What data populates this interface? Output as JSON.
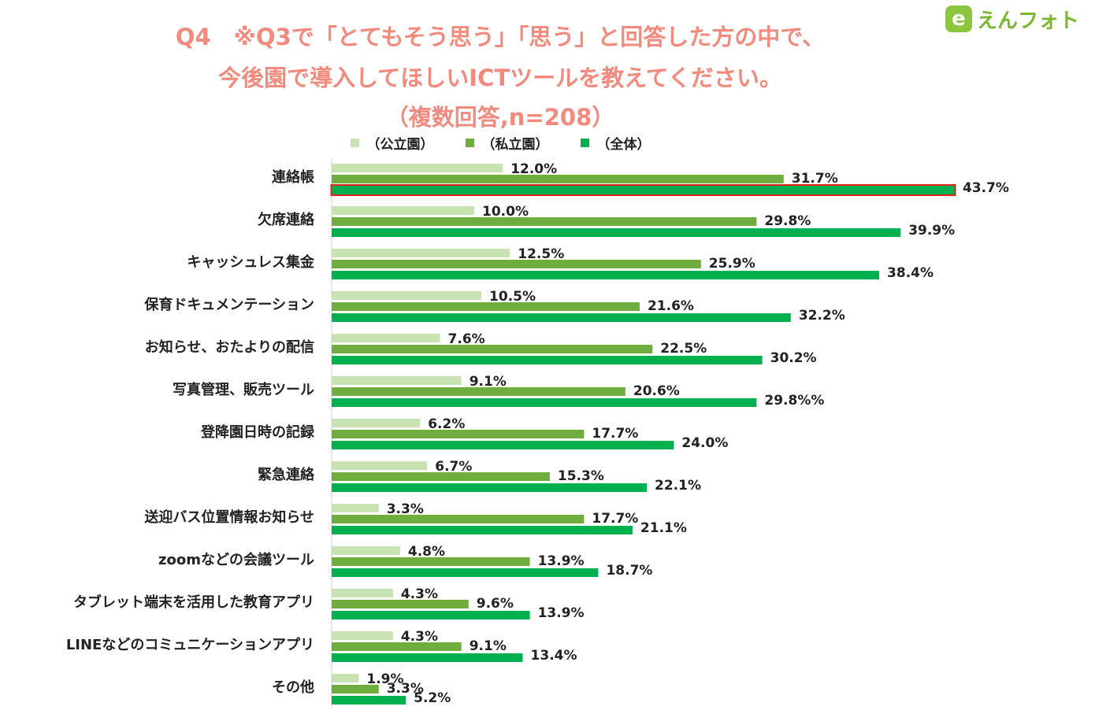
{
  "title_lines": [
    "Q4　※Q3で「とてもそう思う」「思う」と回答した方の中で、",
    "今後園で導入してほしいICTツールを教えてください。",
    "（複数回答,n=208）"
  ],
  "logo": {
    "mark": "e",
    "text": "えんフォト"
  },
  "colors": {
    "title": "#f28b7d",
    "public": "#c8e2b2",
    "private": "#6fae3e",
    "total": "#00b04f",
    "highlight": "#e0201c"
  },
  "chart_data": {
    "type": "bar",
    "orientation": "horizontal",
    "categories": [
      "連絡帳",
      "欠席連絡",
      "キャッシュレス集金",
      "保育ドキュメンテーション",
      "お知らせ、おたよりの配信",
      "写真管理、販売ツール",
      "登降園日時の記録",
      "緊急連絡",
      "送迎バス位置情報お知らせ",
      "zoomなどの会議ツール",
      "タブレット端末を活用した教育アプリ",
      "LINEなどのコミュニケーションアプリ",
      "その他"
    ],
    "series": [
      {
        "name": "（公立園）",
        "color": "#c8e2b2",
        "values": [
          12.0,
          10.0,
          12.5,
          10.5,
          7.6,
          9.1,
          6.2,
          6.7,
          3.3,
          4.8,
          4.3,
          4.3,
          1.9
        ],
        "labels": [
          "12.0%",
          "10.0%",
          "12.5%",
          "10.5%",
          "7.6%",
          "9.1%",
          "6.2%",
          "6.7%",
          "3.3%",
          "4.8%",
          "4.3%",
          "4.3%",
          "1.9%"
        ]
      },
      {
        "name": "（私立園）",
        "color": "#6fae3e",
        "values": [
          31.7,
          29.8,
          25.9,
          21.6,
          22.5,
          20.6,
          17.7,
          15.3,
          17.7,
          13.9,
          9.6,
          9.1,
          3.3
        ],
        "labels": [
          "31.7%",
          "29.8%",
          "25.9%",
          "21.6%",
          "22.5%",
          "20.6%",
          "17.7%",
          "15.3%",
          "17.7%",
          "13.9%",
          "9.6%",
          "9.1%",
          "3.3%"
        ]
      },
      {
        "name": "（全体）",
        "color": "#00b04f",
        "values": [
          43.7,
          39.9,
          38.4,
          32.2,
          30.2,
          29.8,
          24.0,
          22.1,
          21.1,
          18.7,
          13.9,
          13.4,
          5.2
        ],
        "labels": [
          "43.7%",
          "39.9%",
          "38.4%",
          "32.2%",
          "30.2%",
          "29.8%%",
          "24.0%",
          "22.1%",
          "21.1%",
          "18.7%",
          "13.9%",
          "13.4%",
          "5.2%"
        ]
      }
    ],
    "highlight": {
      "category_index": 0,
      "series_index": 2
    },
    "xlim": [
      0,
      50
    ],
    "grid": false,
    "legend_position": "top"
  }
}
